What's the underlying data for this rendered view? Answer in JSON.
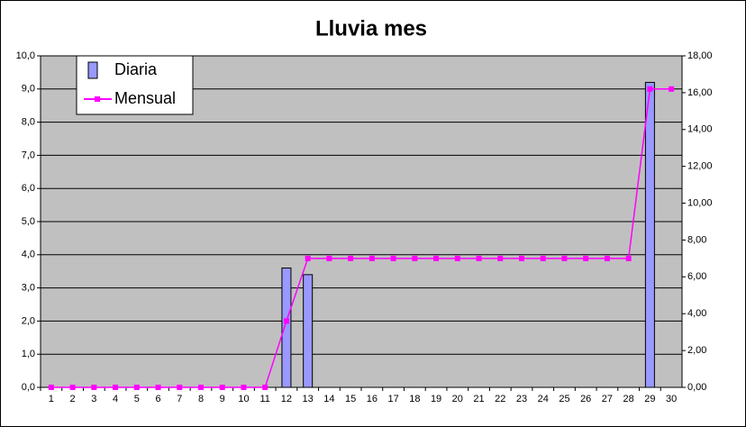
{
  "chart_data": {
    "type": "bar",
    "title": "Lluvia mes",
    "categories": [
      "1",
      "2",
      "3",
      "4",
      "5",
      "6",
      "7",
      "8",
      "9",
      "10",
      "11",
      "12",
      "13",
      "14",
      "15",
      "16",
      "17",
      "18",
      "19",
      "20",
      "21",
      "22",
      "23",
      "24",
      "25",
      "26",
      "27",
      "28",
      "29",
      "30"
    ],
    "series": [
      {
        "name": "Diaria",
        "type": "bar",
        "color": "#9999ff",
        "axis": "y",
        "values": [
          0,
          0,
          0,
          0,
          0,
          0,
          0,
          0,
          0,
          0,
          0,
          3.6,
          3.4,
          0,
          0,
          0,
          0,
          0,
          0,
          0,
          0,
          0,
          0,
          0,
          0,
          0,
          0,
          0,
          9.2,
          0
        ]
      },
      {
        "name": "Mensual",
        "type": "line",
        "color": "#ff00ff",
        "axis": "y2",
        "values": [
          0,
          0,
          0,
          0,
          0,
          0,
          0,
          0,
          0,
          0,
          0,
          3.6,
          7.0,
          7.0,
          7.0,
          7.0,
          7.0,
          7.0,
          7.0,
          7.0,
          7.0,
          7.0,
          7.0,
          7.0,
          7.0,
          7.0,
          7.0,
          7.0,
          16.2,
          16.2
        ]
      }
    ],
    "ylim": [
      0,
      10
    ],
    "yticks": [
      {
        "value": 0,
        "label": "0,0"
      },
      {
        "value": 1,
        "label": "1,0"
      },
      {
        "value": 2,
        "label": "2,0"
      },
      {
        "value": 3,
        "label": "3,0"
      },
      {
        "value": 4,
        "label": "4,0"
      },
      {
        "value": 5,
        "label": "5,0"
      },
      {
        "value": 6,
        "label": "6,0"
      },
      {
        "value": 7,
        "label": "7,0"
      },
      {
        "value": 8,
        "label": "8,0"
      },
      {
        "value": 9,
        "label": "9,0"
      },
      {
        "value": 10,
        "label": "10,0"
      }
    ],
    "y2lim": [
      0,
      18
    ],
    "y2ticks": [
      {
        "value": 0,
        "label": "0,00"
      },
      {
        "value": 2,
        "label": "2,00"
      },
      {
        "value": 4,
        "label": "4,00"
      },
      {
        "value": 6,
        "label": "6,00"
      },
      {
        "value": 8,
        "label": "8,00"
      },
      {
        "value": 10,
        "label": "10,00"
      },
      {
        "value": 12,
        "label": "12,00"
      },
      {
        "value": 14,
        "label": "14,00"
      },
      {
        "value": 16,
        "label": "16,00"
      },
      {
        "value": 18,
        "label": "18,00"
      }
    ],
    "grid": true
  }
}
